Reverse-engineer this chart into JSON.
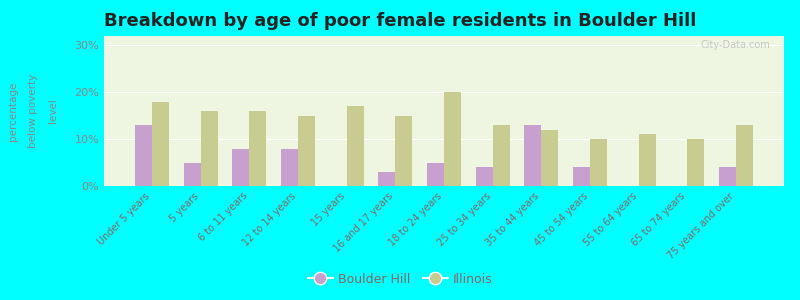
{
  "categories": [
    "Under 5 years",
    "5 years",
    "6 to 11 years",
    "12 to 14 years",
    "15 years",
    "16 and 17 years",
    "18 to 24 years",
    "25 to 34 years",
    "35 to 44 years",
    "45 to 54 years",
    "55 to 64 years",
    "65 to 74 years",
    "75 years and over"
  ],
  "boulder_hill": [
    13,
    5,
    8,
    8,
    0,
    3,
    5,
    4,
    13,
    4,
    0,
    0,
    4
  ],
  "illinois": [
    18,
    16,
    16,
    15,
    17,
    15,
    20,
    13,
    12,
    10,
    11,
    10,
    13
  ],
  "boulder_hill_color": "#c8a0d0",
  "illinois_color": "#c8cc90",
  "title": "Breakdown by age of poor female residents in Boulder Hill",
  "ylabel_line1": "percentage",
  "ylabel_line2": "below poverty",
  "ylabel_line3": "level",
  "ylim": [
    0,
    32
  ],
  "yticks": [
    0,
    10,
    20,
    30
  ],
  "ytick_labels": [
    "0%",
    "10%",
    "20%",
    "30%"
  ],
  "background_color": "#00ffff",
  "plot_bg_color": "#eef5e0",
  "title_fontsize": 13,
  "bar_width": 0.35,
  "legend_boulder": "Boulder Hill",
  "legend_illinois": "Illinois",
  "label_color": "#886666",
  "ytick_color": "#888888",
  "watermark": "City-Data.com"
}
